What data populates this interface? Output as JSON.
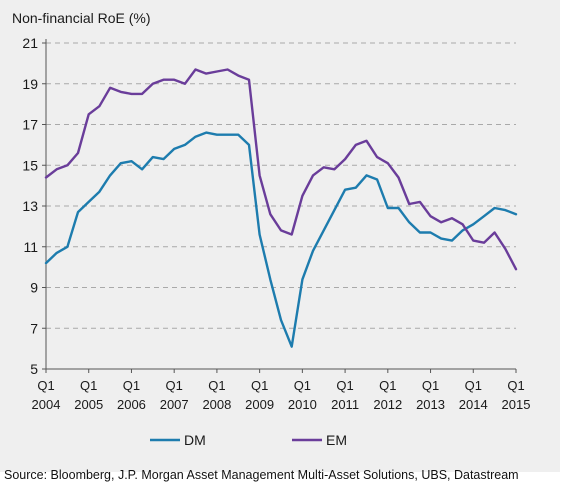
{
  "chart_data": {
    "type": "line",
    "ylabel": "Non-financial RoE (%)",
    "ylim": [
      5,
      21
    ],
    "yticks": [
      5,
      7,
      9,
      11,
      13,
      15,
      17,
      19,
      21
    ],
    "grid": "horizontal-dashed",
    "legend": "bottom-center",
    "xlim": [
      2004.0,
      2015.0
    ],
    "xticks": [
      {
        "x": 2004,
        "q": "Q1",
        "year": "2004"
      },
      {
        "x": 2005,
        "q": "Q1",
        "year": "2005"
      },
      {
        "x": 2006,
        "q": "Q1",
        "year": "2006"
      },
      {
        "x": 2007,
        "q": "Q1",
        "year": "2007"
      },
      {
        "x": 2008,
        "q": "Q1",
        "year": "2008"
      },
      {
        "x": 2009,
        "q": "Q1",
        "year": "2009"
      },
      {
        "x": 2010,
        "q": "Q1",
        "year": "2010"
      },
      {
        "x": 2011,
        "q": "Q1",
        "year": "2011"
      },
      {
        "x": 2012,
        "q": "Q1",
        "year": "2012"
      },
      {
        "x": 2013,
        "q": "Q1",
        "year": "2013"
      },
      {
        "x": 2014,
        "q": "Q1",
        "year": "2014"
      },
      {
        "x": 2015,
        "q": "Q1",
        "year": "2015"
      }
    ],
    "x": [
      2004.0,
      2004.25,
      2004.5,
      2004.75,
      2005.0,
      2005.25,
      2005.5,
      2005.75,
      2006.0,
      2006.25,
      2006.5,
      2006.75,
      2007.0,
      2007.25,
      2007.5,
      2007.75,
      2008.0,
      2008.25,
      2008.5,
      2008.75,
      2009.0,
      2009.25,
      2009.5,
      2009.75,
      2010.0,
      2010.25,
      2010.5,
      2010.75,
      2011.0,
      2011.25,
      2011.5,
      2011.75,
      2012.0,
      2012.25,
      2012.5,
      2012.75,
      2013.0,
      2013.25,
      2013.5,
      2013.75,
      2014.0,
      2014.25,
      2014.5,
      2014.75,
      2015.0
    ],
    "series": [
      {
        "name": "DM",
        "color": "#1d7cae",
        "values": [
          10.2,
          10.7,
          11.0,
          12.7,
          13.2,
          13.7,
          14.5,
          15.1,
          15.2,
          14.8,
          15.4,
          15.3,
          15.8,
          16.0,
          16.4,
          16.6,
          16.5,
          16.5,
          16.5,
          16.0,
          11.6,
          9.4,
          7.4,
          6.1,
          9.4,
          10.8,
          11.8,
          12.8,
          13.8,
          13.9,
          14.5,
          14.3,
          12.9,
          12.9,
          12.2,
          11.7,
          11.7,
          11.4,
          11.3,
          11.8,
          12.1,
          12.5,
          12.9,
          12.8,
          12.6
        ]
      },
      {
        "name": "EM",
        "color": "#6a3d9a",
        "values": [
          14.4,
          14.8,
          15.0,
          15.6,
          17.5,
          17.9,
          18.8,
          18.6,
          18.5,
          18.5,
          19.0,
          19.2,
          19.2,
          19.0,
          19.7,
          19.5,
          19.6,
          19.7,
          19.4,
          19.2,
          14.5,
          12.6,
          11.8,
          11.6,
          13.5,
          14.5,
          14.9,
          14.8,
          15.3,
          16.0,
          16.2,
          15.4,
          15.1,
          14.4,
          13.1,
          13.2,
          12.5,
          12.2,
          12.4,
          12.1,
          11.3,
          11.2,
          11.7,
          10.9,
          9.9
        ]
      }
    ]
  },
  "source": "Source: Bloomberg, J.P. Morgan Asset Management Multi-Asset Solutions, UBS, Datastream"
}
